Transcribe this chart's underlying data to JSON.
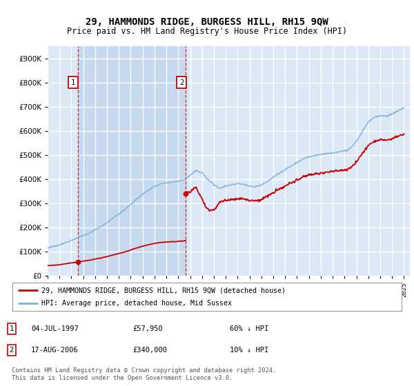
{
  "title": "29, HAMMONDS RIDGE, BURGESS HILL, RH15 9QW",
  "subtitle": "Price paid vs. HM Land Registry's House Price Index (HPI)",
  "legend_line1": "29, HAMMONDS RIDGE, BURGESS HILL, RH15 9QW (detached house)",
  "legend_line2": "HPI: Average price, detached house, Mid Sussex",
  "annotation1_date": "04-JUL-1997",
  "annotation1_price": "£57,950",
  "annotation1_hpi": "60% ↓ HPI",
  "annotation2_date": "17-AUG-2006",
  "annotation2_price": "£340,000",
  "annotation2_hpi": "10% ↓ HPI",
  "footer": "Contains HM Land Registry data © Crown copyright and database right 2024.\nThis data is licensed under the Open Government Licence v3.0.",
  "hpi_color": "#7bafd4",
  "price_color": "#cc0000",
  "bg_color": "#ffffff",
  "plot_bg_color": "#dce8f5",
  "grid_color": "#ffffff",
  "ann_box_color": "#cc0000",
  "dashed_color": "#cc0000",
  "shade_color": "#c5d8ee",
  "ylim": [
    0,
    950000
  ],
  "yticks": [
    0,
    100000,
    200000,
    300000,
    400000,
    500000,
    600000,
    700000,
    800000,
    900000
  ],
  "sale1_x": 1997.54,
  "sale1_y": 57950,
  "sale2_x": 2006.63,
  "sale2_y": 340000,
  "xmin": 1995.0,
  "xmax": 2025.5
}
